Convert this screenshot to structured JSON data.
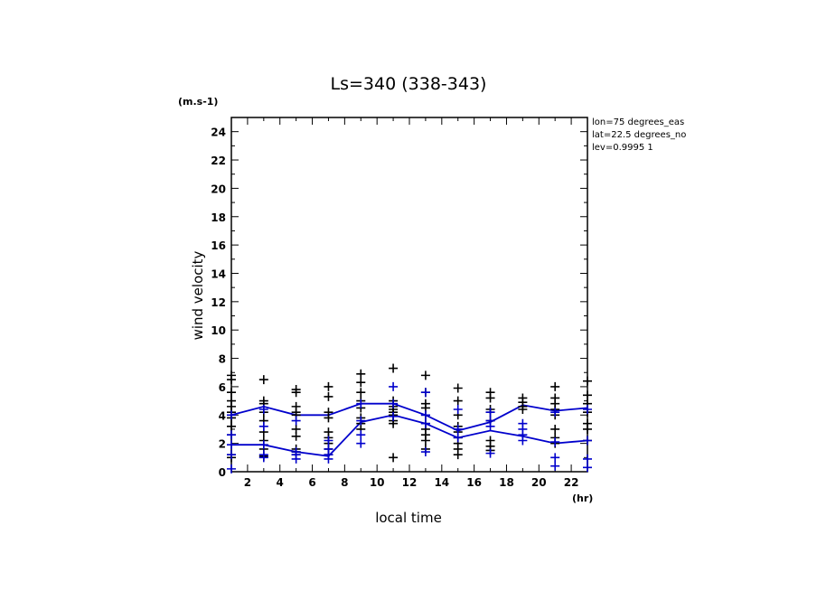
{
  "chart_data": {
    "type": "scatter",
    "title": "Ls=340 (338-343)",
    "ylabel": "wind velocity",
    "yunit": "(m.s-1)",
    "xlabel": "local time",
    "xunit": "(hr)",
    "info": [
      "lon=75 degrees_eas",
      "lat=22.5 degrees_no",
      "lev=0.9995 1"
    ],
    "xlim": [
      1,
      23
    ],
    "ylim": [
      0,
      25
    ],
    "xticks": [
      2,
      4,
      6,
      8,
      10,
      12,
      14,
      16,
      18,
      20,
      22
    ],
    "yticks": [
      0,
      2,
      4,
      6,
      8,
      10,
      12,
      14,
      16,
      18,
      20,
      22,
      24
    ],
    "x": [
      1,
      3,
      5,
      7,
      9,
      11,
      13,
      15,
      17,
      19,
      21,
      23
    ],
    "colors": {
      "black": "#000000",
      "blue": "#0000cc"
    },
    "series": [
      {
        "color": "blue",
        "style": "line",
        "values": [
          4.0,
          4.6,
          4.0,
          4.0,
          4.8,
          4.8,
          4.0,
          2.9,
          3.5,
          4.7,
          4.3,
          4.5
        ]
      },
      {
        "color": "blue",
        "style": "line",
        "values": [
          1.9,
          1.9,
          1.4,
          1.1,
          3.5,
          4.0,
          3.4,
          2.4,
          2.9,
          2.5,
          2.0,
          2.2
        ]
      },
      {
        "color": "black",
        "style": "markers",
        "points": [
          [
            1,
            6.8
          ],
          [
            1,
            6.5
          ],
          [
            1,
            5.6
          ],
          [
            1,
            5.0
          ],
          [
            1,
            4.6
          ],
          [
            1,
            4.2
          ],
          [
            1,
            3.8
          ],
          [
            1,
            3.2
          ],
          [
            1,
            2.6
          ],
          [
            1,
            1.2
          ],
          [
            1,
            1.0
          ],
          [
            3,
            6.5
          ],
          [
            3,
            5.0
          ],
          [
            3,
            4.8
          ],
          [
            3,
            4.2
          ],
          [
            3,
            3.6
          ],
          [
            3,
            2.8
          ],
          [
            3,
            2.2
          ],
          [
            3,
            1.6
          ],
          [
            3,
            1.1
          ],
          [
            5,
            5.8
          ],
          [
            5,
            5.6
          ],
          [
            5,
            4.6
          ],
          [
            5,
            4.2
          ],
          [
            5,
            4.0
          ],
          [
            5,
            3.0
          ],
          [
            5,
            2.5
          ],
          [
            5,
            1.6
          ],
          [
            5,
            1.4
          ],
          [
            5,
            1.2
          ],
          [
            7,
            6.0
          ],
          [
            7,
            5.3
          ],
          [
            7,
            4.2
          ],
          [
            7,
            3.8
          ],
          [
            7,
            2.8
          ],
          [
            7,
            2.4
          ],
          [
            7,
            2.0
          ],
          [
            7,
            1.6
          ],
          [
            7,
            1.2
          ],
          [
            9,
            6.9
          ],
          [
            9,
            6.3
          ],
          [
            9,
            5.6
          ],
          [
            9,
            5.0
          ],
          [
            9,
            4.5
          ],
          [
            9,
            3.8
          ],
          [
            9,
            3.4
          ],
          [
            9,
            3.0
          ],
          [
            11,
            7.3
          ],
          [
            11,
            5.0
          ],
          [
            11,
            4.6
          ],
          [
            11,
            4.4
          ],
          [
            11,
            4.2
          ],
          [
            11,
            4.0
          ],
          [
            11,
            3.6
          ],
          [
            11,
            3.4
          ],
          [
            11,
            1.0
          ],
          [
            13,
            6.8
          ],
          [
            13,
            5.6
          ],
          [
            13,
            4.8
          ],
          [
            13,
            4.5
          ],
          [
            13,
            4.0
          ],
          [
            13,
            3.4
          ],
          [
            13,
            3.0
          ],
          [
            13,
            2.6
          ],
          [
            13,
            2.2
          ],
          [
            13,
            1.6
          ],
          [
            15,
            5.9
          ],
          [
            15,
            5.0
          ],
          [
            15,
            4.0
          ],
          [
            15,
            3.2
          ],
          [
            15,
            2.8
          ],
          [
            15,
            2.4
          ],
          [
            15,
            2.0
          ],
          [
            15,
            1.6
          ],
          [
            15,
            1.2
          ],
          [
            17,
            5.6
          ],
          [
            17,
            5.2
          ],
          [
            17,
            4.4
          ],
          [
            17,
            4.2
          ],
          [
            17,
            3.6
          ],
          [
            17,
            2.2
          ],
          [
            17,
            1.8
          ],
          [
            17,
            1.5
          ],
          [
            19,
            5.2
          ],
          [
            19,
            4.9
          ],
          [
            19,
            4.6
          ],
          [
            19,
            4.4
          ],
          [
            21,
            6.0
          ],
          [
            21,
            5.2
          ],
          [
            21,
            4.8
          ],
          [
            21,
            4.4
          ],
          [
            21,
            4.0
          ],
          [
            21,
            3.0
          ],
          [
            21,
            2.4
          ],
          [
            21,
            2.0
          ],
          [
            23,
            6.4
          ],
          [
            23,
            5.4
          ],
          [
            23,
            4.8
          ],
          [
            23,
            4.2
          ],
          [
            23,
            3.4
          ],
          [
            23,
            3.0
          ],
          [
            23,
            2.2
          ]
        ]
      },
      {
        "color": "blue",
        "style": "markers",
        "points": [
          [
            1,
            4.0
          ],
          [
            1,
            2.6
          ],
          [
            1,
            1.9
          ],
          [
            1,
            1.2
          ],
          [
            1,
            0.2
          ],
          [
            3,
            4.4
          ],
          [
            3,
            3.2
          ],
          [
            3,
            1.9
          ],
          [
            3,
            1.2
          ],
          [
            3,
            1.0
          ],
          [
            5,
            3.6
          ],
          [
            5,
            1.4
          ],
          [
            5,
            1.2
          ],
          [
            5,
            0.9
          ],
          [
            7,
            2.2
          ],
          [
            7,
            1.6
          ],
          [
            7,
            1.2
          ],
          [
            7,
            0.9
          ],
          [
            9,
            4.8
          ],
          [
            9,
            3.6
          ],
          [
            9,
            2.6
          ],
          [
            9,
            2.0
          ],
          [
            11,
            6.0
          ],
          [
            11,
            4.8
          ],
          [
            11,
            3.9
          ],
          [
            13,
            5.6
          ],
          [
            13,
            4.0
          ],
          [
            13,
            3.4
          ],
          [
            13,
            1.4
          ],
          [
            15,
            4.4
          ],
          [
            15,
            3.0
          ],
          [
            15,
            2.4
          ],
          [
            17,
            4.2
          ],
          [
            17,
            3.6
          ],
          [
            17,
            3.2
          ],
          [
            17,
            1.3
          ],
          [
            19,
            3.4
          ],
          [
            19,
            3.0
          ],
          [
            19,
            2.6
          ],
          [
            19,
            2.2
          ],
          [
            21,
            4.2
          ],
          [
            21,
            2.1
          ],
          [
            21,
            1.0
          ],
          [
            21,
            0.4
          ],
          [
            23,
            4.4
          ],
          [
            23,
            2.2
          ],
          [
            23,
            0.9
          ],
          [
            23,
            0.3
          ]
        ]
      }
    ]
  }
}
